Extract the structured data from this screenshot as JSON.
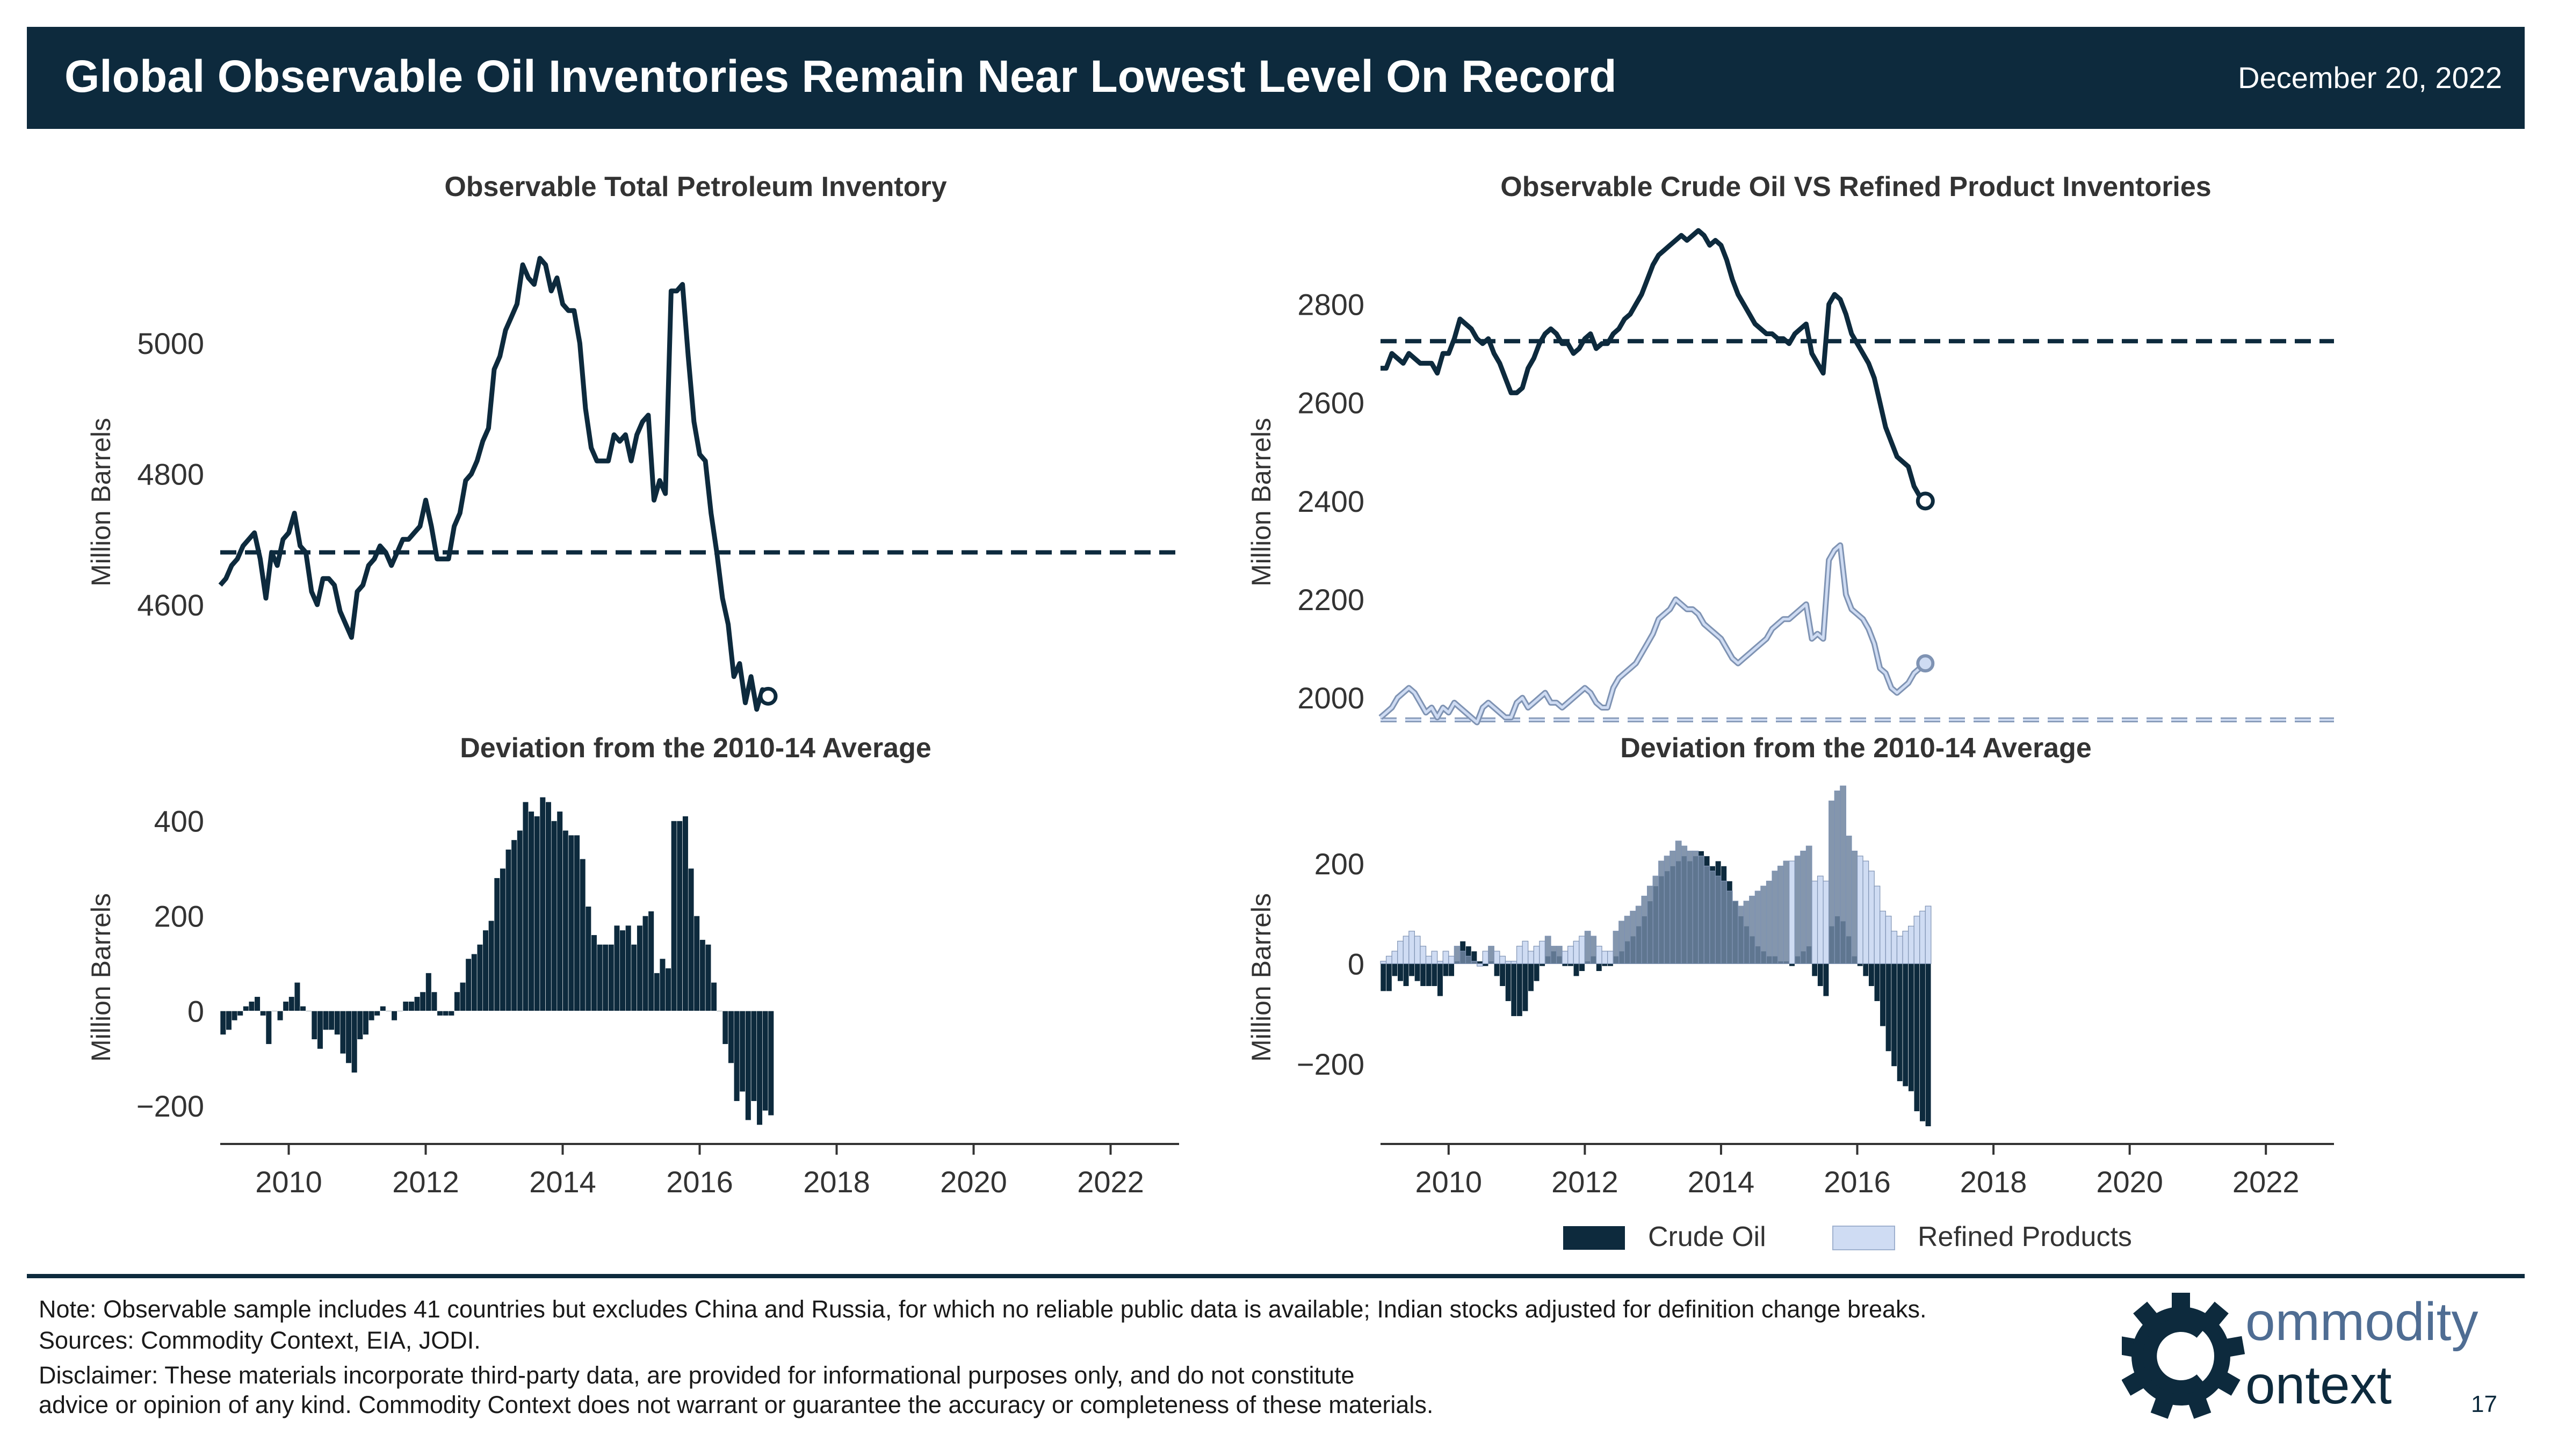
{
  "header": {
    "title": "Global Observable Oil Inventories Remain Near Lowest Level On Record",
    "date": "December 20, 2022"
  },
  "colors": {
    "navy": "#0d2a3d",
    "crude": "#0d2a3d",
    "refined_fill": "#cfdcf3",
    "refined_line": "#7f93b3",
    "overlap": "#6e849f"
  },
  "chart_data": [
    {
      "id": "total",
      "type": "line",
      "title": "Observable Total Petroleum Inventory",
      "xlabel": "",
      "ylabel": "Million Barrels",
      "xlim": [
        2009.0,
        2023.0
      ],
      "ylim": [
        4420,
        5180
      ],
      "yticks": [
        4600,
        4800,
        5000
      ],
      "average_line": 4680,
      "x_start": 2009.0,
      "x_step": 0.0833333,
      "series": [
        {
          "name": "",
          "values": [
            4630,
            4640,
            4660,
            4670,
            4690,
            4700,
            4710,
            4670,
            4610,
            4680,
            4660,
            4700,
            4710,
            4740,
            4690,
            4680,
            4620,
            4600,
            4640,
            4640,
            4630,
            4590,
            4570,
            4550,
            4620,
            4630,
            4660,
            4670,
            4690,
            4680,
            4660,
            4680,
            4700,
            4700,
            4710,
            4720,
            4760,
            4720,
            4670,
            4670,
            4670,
            4720,
            4740,
            4790,
            4800,
            4820,
            4850,
            4870,
            4960,
            4980,
            5020,
            5040,
            5060,
            5120,
            5100,
            5090,
            5130,
            5120,
            5080,
            5100,
            5060,
            5050,
            5050,
            5000,
            4900,
            4840,
            4820,
            4820,
            4820,
            4860,
            4850,
            4860,
            4820,
            4860,
            4880,
            4890,
            4760,
            4790,
            4770,
            5080,
            5080,
            5090,
            4980,
            4880,
            4830,
            4820,
            4740,
            4680,
            4610,
            4570,
            4490,
            4510,
            4450,
            4490,
            4440,
            4470,
            4460
          ]
        }
      ]
    },
    {
      "id": "total_dev",
      "type": "bar",
      "title": "Deviation from the 2010-14 Average",
      "xlabel": "",
      "ylabel": "Million Barrels",
      "xlim": [
        2009.0,
        2023.0
      ],
      "ylim": [
        -280,
        500
      ],
      "yticks": [
        -200,
        0,
        200,
        400
      ],
      "xticks": [
        2010,
        2012,
        2014,
        2016,
        2018,
        2020,
        2022
      ],
      "x_start": 2009.0,
      "x_step": 0.0833333,
      "series": [
        {
          "name": "",
          "values": [
            -50,
            -40,
            -20,
            -10,
            10,
            20,
            30,
            -10,
            -70,
            0,
            -20,
            20,
            30,
            60,
            10,
            0,
            -60,
            -80,
            -40,
            -40,
            -50,
            -90,
            -110,
            -130,
            -60,
            -50,
            -20,
            -10,
            10,
            0,
            -20,
            0,
            20,
            20,
            30,
            40,
            80,
            40,
            -10,
            -10,
            -10,
            40,
            60,
            110,
            120,
            140,
            170,
            190,
            280,
            300,
            340,
            360,
            380,
            440,
            420,
            410,
            450,
            440,
            400,
            420,
            380,
            370,
            370,
            320,
            220,
            160,
            140,
            140,
            140,
            180,
            170,
            180,
            140,
            180,
            200,
            210,
            80,
            110,
            90,
            400,
            400,
            410,
            300,
            200,
            150,
            140,
            60,
            0,
            -70,
            -110,
            -190,
            -170,
            -230,
            -190,
            -240,
            -210,
            -220
          ]
        }
      ]
    },
    {
      "id": "crude_refined",
      "type": "line",
      "title": "Observable Crude Oil VS Refined Product Inventories",
      "xlabel": "",
      "ylabel": "Million Barrels",
      "xlim": [
        2009.0,
        2023.0
      ],
      "ylim": [
        1950,
        2960
      ],
      "yticks": [
        2000,
        2200,
        2400,
        2600,
        2800
      ],
      "average_lines": [
        2725,
        1955
      ],
      "x_start": 2009.0,
      "x_step": 0.0833333,
      "series": [
        {
          "name": "Crude Oil",
          "values": [
            2670,
            2670,
            2700,
            2690,
            2680,
            2700,
            2690,
            2680,
            2680,
            2680,
            2660,
            2700,
            2700,
            2730,
            2770,
            2760,
            2750,
            2730,
            2720,
            2730,
            2700,
            2680,
            2650,
            2620,
            2620,
            2630,
            2670,
            2690,
            2720,
            2740,
            2750,
            2740,
            2720,
            2720,
            2700,
            2710,
            2730,
            2740,
            2710,
            2720,
            2720,
            2740,
            2750,
            2770,
            2780,
            2800,
            2820,
            2850,
            2880,
            2900,
            2910,
            2920,
            2930,
            2940,
            2930,
            2940,
            2950,
            2940,
            2920,
            2930,
            2920,
            2890,
            2850,
            2820,
            2800,
            2780,
            2760,
            2750,
            2740,
            2740,
            2730,
            2730,
            2720,
            2740,
            2750,
            2760,
            2700,
            2680,
            2660,
            2800,
            2820,
            2810,
            2780,
            2740,
            2720,
            2700,
            2680,
            2650,
            2600,
            2550,
            2520,
            2490,
            2480,
            2470,
            2430,
            2410,
            2400
          ]
        },
        {
          "name": "Refined Products",
          "values": [
            1960,
            1970,
            1980,
            2000,
            2010,
            2020,
            2010,
            1990,
            1970,
            1980,
            1960,
            1980,
            1970,
            1990,
            1980,
            1970,
            1960,
            1950,
            1980,
            1990,
            1980,
            1970,
            1960,
            1960,
            1990,
            2000,
            1980,
            1990,
            2000,
            2010,
            1990,
            1990,
            1980,
            1990,
            2000,
            2010,
            2020,
            2010,
            1990,
            1980,
            1980,
            2020,
            2040,
            2050,
            2060,
            2070,
            2090,
            2110,
            2130,
            2160,
            2170,
            2180,
            2200,
            2190,
            2180,
            2180,
            2170,
            2150,
            2140,
            2130,
            2120,
            2100,
            2080,
            2070,
            2080,
            2090,
            2100,
            2110,
            2120,
            2140,
            2150,
            2160,
            2160,
            2170,
            2180,
            2190,
            2120,
            2130,
            2120,
            2280,
            2300,
            2310,
            2210,
            2180,
            2170,
            2160,
            2140,
            2110,
            2060,
            2050,
            2020,
            2010,
            2020,
            2030,
            2050,
            2060,
            2070
          ]
        }
      ]
    },
    {
      "id": "crude_refined_dev",
      "type": "bar",
      "title": "Deviation from the 2010-14 Average",
      "xlabel": "",
      "ylabel": "Million Barrels",
      "xlim": [
        2009.0,
        2023.0
      ],
      "ylim": [
        -360,
        380
      ],
      "yticks": [
        -200,
        0,
        200
      ],
      "xticks": [
        2010,
        2012,
        2014,
        2016,
        2018,
        2020,
        2022
      ],
      "x_start": 2009.0,
      "x_step": 0.0833333,
      "legend": "bottom-center",
      "series": [
        {
          "name": "Crude Oil",
          "values": [
            -55,
            -55,
            -25,
            -35,
            -45,
            -25,
            -35,
            -45,
            -45,
            -45,
            -65,
            -25,
            -25,
            5,
            45,
            35,
            25,
            5,
            -5,
            5,
            -25,
            -45,
            -75,
            -105,
            -105,
            -95,
            -55,
            -35,
            -5,
            15,
            25,
            15,
            -5,
            -5,
            -25,
            -15,
            5,
            15,
            -15,
            -5,
            -5,
            15,
            25,
            45,
            55,
            75,
            95,
            125,
            155,
            175,
            185,
            195,
            205,
            215,
            205,
            215,
            225,
            215,
            195,
            205,
            195,
            165,
            125,
            95,
            75,
            55,
            35,
            25,
            15,
            15,
            5,
            5,
            -5,
            15,
            25,
            35,
            -25,
            -45,
            -65,
            75,
            95,
            85,
            55,
            15,
            -5,
            -25,
            -45,
            -75,
            -125,
            -175,
            -205,
            -235,
            -245,
            -255,
            -295,
            -315,
            -325
          ]
        },
        {
          "name": "Refined Products",
          "values": [
            5,
            15,
            25,
            45,
            55,
            65,
            55,
            35,
            15,
            25,
            5,
            25,
            15,
            35,
            25,
            15,
            5,
            -5,
            25,
            35,
            25,
            15,
            5,
            5,
            35,
            45,
            25,
            35,
            45,
            55,
            35,
            35,
            25,
            35,
            45,
            55,
            65,
            55,
            35,
            25,
            25,
            65,
            85,
            95,
            105,
            115,
            135,
            155,
            175,
            205,
            215,
            225,
            245,
            235,
            225,
            225,
            215,
            195,
            185,
            175,
            165,
            145,
            125,
            115,
            125,
            135,
            145,
            155,
            165,
            185,
            195,
            205,
            205,
            215,
            225,
            235,
            165,
            175,
            165,
            325,
            345,
            355,
            255,
            225,
            215,
            205,
            185,
            155,
            105,
            95,
            65,
            55,
            65,
            75,
            95,
            105,
            115
          ]
        }
      ]
    }
  ],
  "footer": {
    "note": "Note: Observable sample includes 41 countries but excludes China and Russia, for which no reliable public data is available; Indian stocks adjusted for definition change breaks.",
    "sources": "Sources: Commodity Context, EIA, JODI.",
    "disclaimer_1": "Disclaimer: These materials incorporate third-party data, are provided for informational purposes only, and do not constitute",
    "disclaimer_2": "advice or opinion of any kind. Commodity Context does not warrant or guarantee the accuracy or completeness of these materials.",
    "logo_text_1": "ommodity",
    "logo_text_2": "ontext",
    "page_number": "17"
  }
}
